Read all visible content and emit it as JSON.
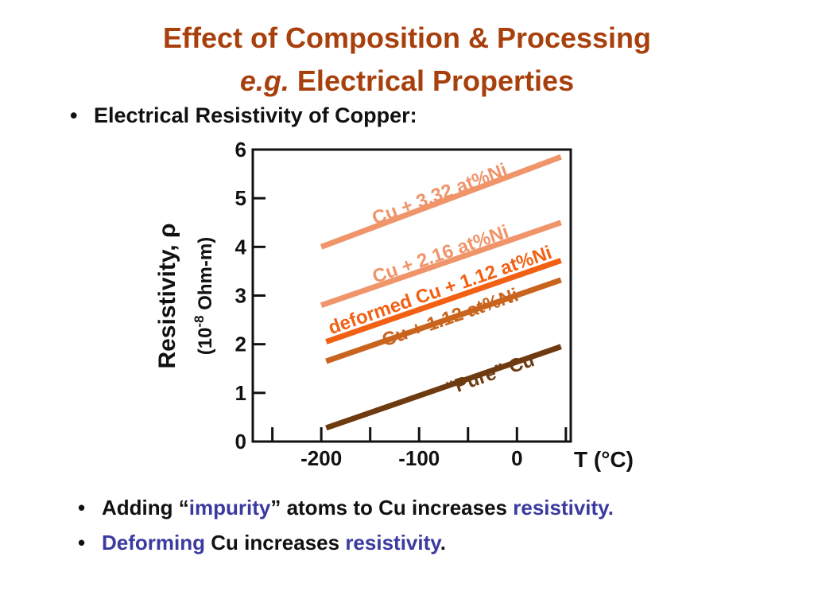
{
  "slide": {
    "title_line1": "Effect of Composition & Processing",
    "title_line2_italic": "e.g.",
    "title_line2_rest": " Electrical Properties",
    "top_bullet": "Electrical Resistivity of Copper:",
    "bullets": [
      {
        "parts": [
          {
            "text": "Adding “",
            "highlight": false
          },
          {
            "text": "impurity",
            "highlight": true
          },
          {
            "text": "” atoms to Cu increases ",
            "highlight": false
          },
          {
            "text": "resistivity.",
            "highlight": true
          }
        ]
      },
      {
        "parts": [
          {
            "text": "Deforming",
            "highlight": true
          },
          {
            "text": " Cu increases ",
            "highlight": false
          },
          {
            "text": "resistivity",
            "highlight": true
          },
          {
            "text": ".",
            "highlight": false
          }
        ]
      }
    ],
    "bullet_glyph": "•"
  },
  "colors": {
    "title": "#a8400d",
    "highlight": "#3a3aa0",
    "axis": "#111111"
  },
  "chart_data": {
    "type": "line",
    "xlabel": "T (°C)",
    "ylabel": "Resistivity, ρ",
    "ylabel_units": "(10-8 Ohm-m)",
    "ylabel_units_parts": {
      "pre": "(10",
      "sup": "-8",
      "post": " Ohm-m)"
    },
    "xlim": [
      -270,
      55
    ],
    "ylim": [
      0,
      6
    ],
    "xticks": [
      -200,
      -100,
      0
    ],
    "xtick_labels": [
      "-200",
      "-100",
      "0"
    ],
    "minor_xticks": [
      -250,
      -150,
      -50,
      50
    ],
    "yticks": [
      0,
      1,
      2,
      3,
      4,
      5,
      6
    ],
    "ytick_labels": [
      "0",
      "1",
      "2",
      "3",
      "4",
      "5",
      "6"
    ],
    "grid": false,
    "series": [
      {
        "name": "Cu + 3.32 at%Ni",
        "color": "#f0946a",
        "x": [
          -200,
          45
        ],
        "y": [
          4.0,
          5.85
        ]
      },
      {
        "name": "Cu + 2.16 at%Ni",
        "color": "#f0946a",
        "x": [
          -200,
          45
        ],
        "y": [
          2.8,
          4.5
        ]
      },
      {
        "name": "deformed Cu + 1.12 at%Ni",
        "color": "#f26014",
        "x": [
          -195,
          45
        ],
        "y": [
          2.05,
          3.72
        ]
      },
      {
        "name": "Cu + 1.12 at%Ni",
        "color": "#c8641e",
        "x": [
          -195,
          45
        ],
        "y": [
          1.65,
          3.32
        ]
      },
      {
        "name": "“Pure” Cu",
        "color": "#6e3a10",
        "x": [
          -195,
          45
        ],
        "y": [
          0.28,
          1.95
        ]
      }
    ]
  }
}
